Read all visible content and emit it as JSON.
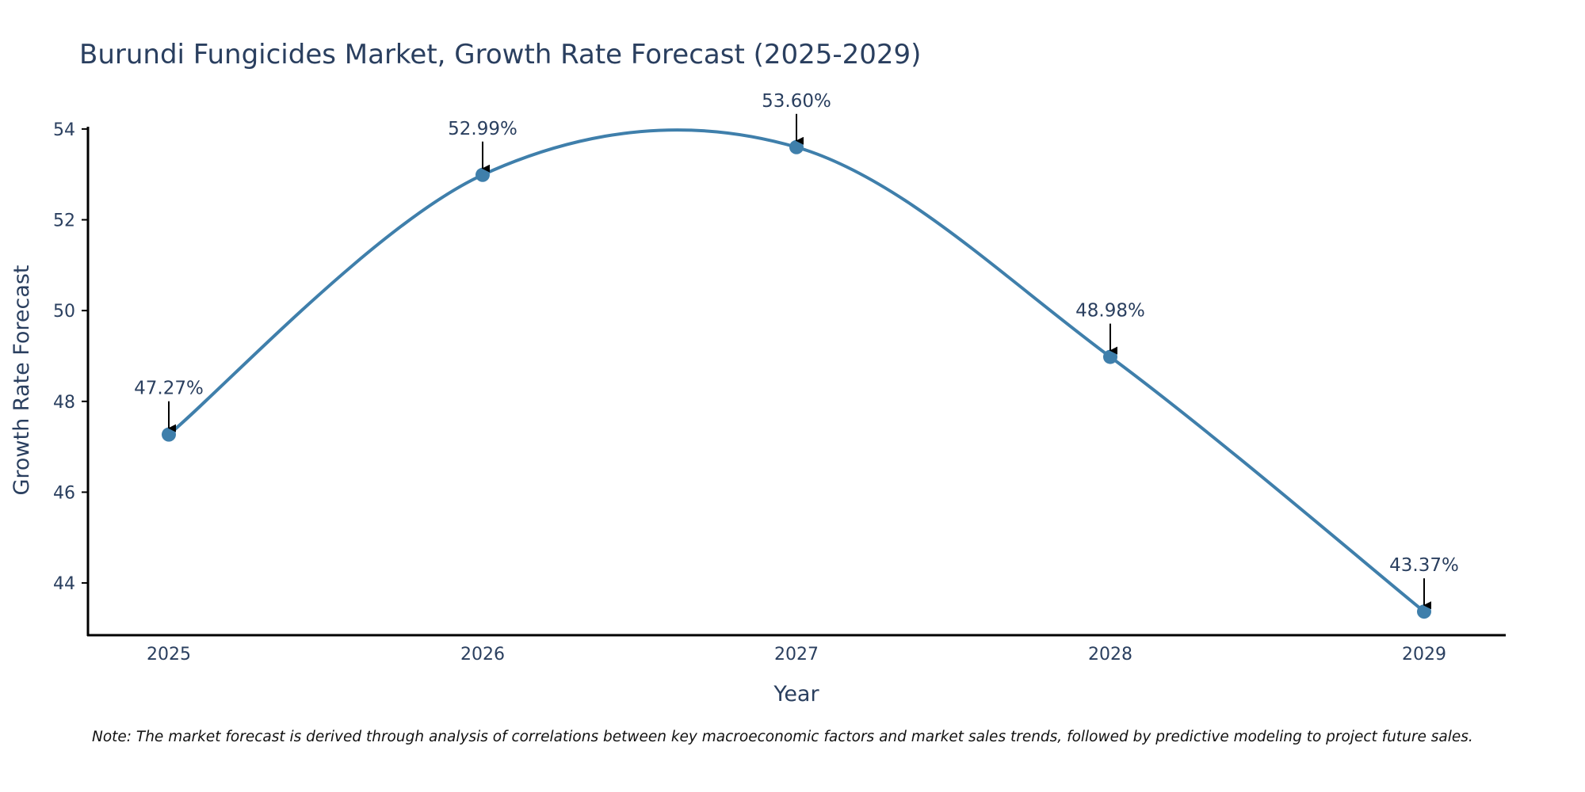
{
  "chart_data": {
    "type": "line",
    "title": "Burundi Fungicides Market, Growth Rate Forecast (2025-2029)",
    "xlabel": "Year",
    "ylabel": "Growth Rate Forecast",
    "categories": [
      "2025",
      "2026",
      "2027",
      "2028",
      "2029"
    ],
    "series": [
      {
        "name": "Growth Rate Forecast",
        "values": [
          47.27,
          52.99,
          53.6,
          48.98,
          43.37
        ],
        "labels": [
          "47.27%",
          "52.99%",
          "53.60%",
          "48.98%",
          "43.37%"
        ]
      }
    ],
    "y_ticks": [
      "44",
      "46",
      "48",
      "50",
      "52",
      "54"
    ],
    "ylim": [
      42.85,
      54.05
    ],
    "grid": false,
    "line_shape": "spline"
  },
  "colors": {
    "line": "#3f7fab",
    "marker": "#3f7fab",
    "axis": "#000000",
    "text": "#2a3f5f",
    "arrow": "#000000"
  },
  "note": "Note: The market forecast is derived through analysis of correlations between key macroeconomic factors and market sales trends, followed by predictive modeling to project future sales."
}
